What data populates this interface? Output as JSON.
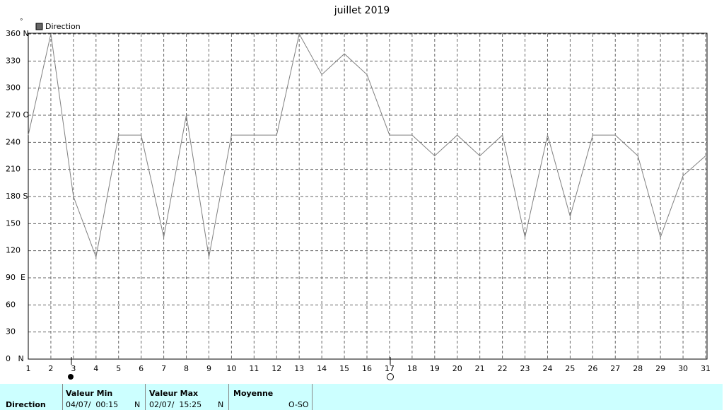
{
  "chart_data": {
    "type": "line",
    "title": "juillet 2019",
    "y_unit": "°",
    "x": [
      1,
      2,
      3,
      4,
      5,
      6,
      7,
      8,
      9,
      10,
      11,
      12,
      13,
      14,
      15,
      16,
      17,
      18,
      19,
      20,
      21,
      22,
      23,
      24,
      25,
      26,
      27,
      28,
      29,
      30,
      31
    ],
    "series": [
      {
        "name": "Direction",
        "color": "#808080",
        "values": [
          248,
          360,
          180,
          113,
          248,
          248,
          135,
          270,
          113,
          248,
          248,
          248,
          360,
          315,
          338,
          315,
          248,
          248,
          225,
          248,
          225,
          248,
          135,
          248,
          158,
          248,
          248,
          225,
          135,
          203,
          225
        ]
      }
    ],
    "xlim": [
      1,
      31
    ],
    "xticks": [
      1,
      2,
      3,
      4,
      5,
      6,
      7,
      8,
      9,
      10,
      11,
      12,
      13,
      14,
      15,
      16,
      17,
      18,
      19,
      20,
      21,
      22,
      23,
      24,
      25,
      26,
      27,
      28,
      29,
      30,
      31
    ],
    "ylim": [
      0,
      360
    ],
    "yticks": [
      {
        "value": 0,
        "label": "0   N"
      },
      30,
      60,
      {
        "value": 90,
        "label": "90  E"
      },
      120,
      150,
      {
        "value": 180,
        "label": "180 S"
      },
      210,
      240,
      {
        "value": 270,
        "label": "270 O"
      },
      300,
      330,
      {
        "value": 360,
        "label": "360 N"
      }
    ],
    "grid": true
  },
  "summary": {
    "row_label": "Direction",
    "min": {
      "header": "Valeur Min",
      "date": "04/07/  00:15",
      "dir": "N"
    },
    "max": {
      "header": "Valeur Max",
      "date": "02/07/  15:25",
      "dir": "N"
    },
    "mean": {
      "header": "Moyenne",
      "value": "O-SO"
    }
  }
}
